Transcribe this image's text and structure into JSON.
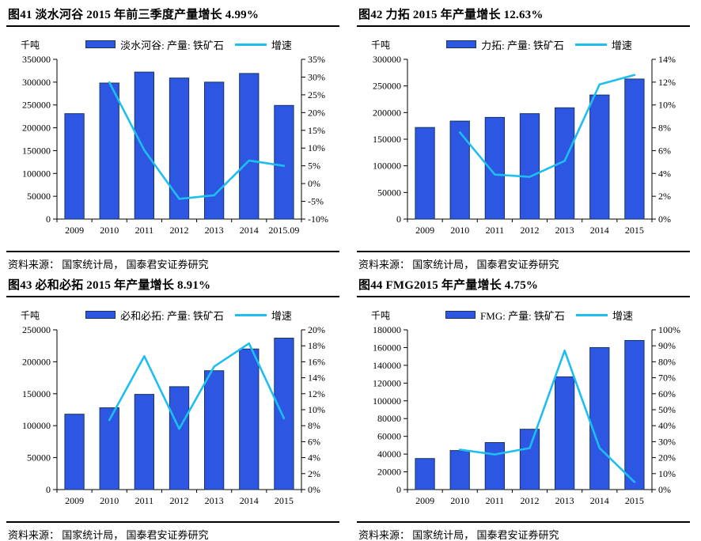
{
  "page": {
    "background": "#ffffff"
  },
  "style": {
    "bar_fill": "#2D57E3",
    "bar_border": "#16365C",
    "line_color": "#1FBEF0",
    "axis_color": "#000000",
    "text_color": "#000000"
  },
  "chart_data": [
    {
      "type": "combo_bar_line",
      "title": "图41  淡水河谷 2015 年前三季度产量增长 4.99%",
      "unit_label": "千吨",
      "categories": [
        "2009",
        "2010",
        "2011",
        "2012",
        "2013",
        "2014",
        "2015.09"
      ],
      "series": [
        {
          "name": "淡水河谷: 产量: 铁矿石",
          "type": "bar",
          "axis": "left",
          "values": [
            231000,
            298000,
            322000,
            309000,
            300000,
            319000,
            249000
          ]
        },
        {
          "name": "增速",
          "type": "line",
          "axis": "right",
          "values": [
            null,
            28.5,
            9.4,
            -4.3,
            -3.3,
            6.5,
            4.99
          ]
        }
      ],
      "left_axis": {
        "min": 0,
        "max": 350000,
        "step": 50000
      },
      "right_axis": {
        "min": -10,
        "max": 35,
        "step": 5,
        "suffix": "%"
      },
      "grid": false,
      "legend_position": "top",
      "source": "资料来源： 国家统计局， 国泰君安证券研究"
    },
    {
      "type": "combo_bar_line",
      "title": "图42  力拓 2015 年产量增长 12.63%",
      "unit_label": "千吨",
      "categories": [
        "2009",
        "2010",
        "2011",
        "2012",
        "2013",
        "2014",
        "2015"
      ],
      "series": [
        {
          "name": "力拓: 产量: 铁矿石",
          "type": "bar",
          "axis": "left",
          "values": [
            172000,
            184000,
            191000,
            198000,
            209000,
            233000,
            263000
          ]
        },
        {
          "name": "增速",
          "type": "line",
          "axis": "right",
          "values": [
            null,
            7.6,
            3.9,
            3.7,
            5.1,
            11.8,
            12.63
          ]
        }
      ],
      "left_axis": {
        "min": 0,
        "max": 300000,
        "step": 50000
      },
      "right_axis": {
        "min": 0,
        "max": 14,
        "step": 2,
        "suffix": "%"
      },
      "grid": false,
      "legend_position": "top",
      "source": "资料来源： 国家统计局， 国泰君安证券研究"
    },
    {
      "type": "combo_bar_line",
      "title": "图43  必和必拓 2015 年产量增长 8.91%",
      "unit_label": "千吨",
      "categories": [
        "2009",
        "2010",
        "2011",
        "2012",
        "2013",
        "2014",
        "2015"
      ],
      "series": [
        {
          "name": "必和必拓: 产量: 铁矿石",
          "type": "bar",
          "axis": "left",
          "values": [
            118000,
            128000,
            149000,
            161000,
            186000,
            220000,
            237000
          ]
        },
        {
          "name": "增速",
          "type": "line",
          "axis": "right",
          "values": [
            null,
            8.7,
            16.7,
            7.6,
            15.4,
            18.3,
            8.91
          ]
        }
      ],
      "left_axis": {
        "min": 0,
        "max": 250000,
        "step": 50000
      },
      "right_axis": {
        "min": 0,
        "max": 20,
        "step": 2,
        "suffix": "%"
      },
      "grid": false,
      "legend_position": "top",
      "source": "资料来源： 国家统计局， 国泰君安证券研究"
    },
    {
      "type": "combo_bar_line",
      "title": "图44  FMG2015 年产量增长 4.75%",
      "unit_label": "千吨",
      "categories": [
        "2009",
        "2010",
        "2011",
        "2012",
        "2013",
        "2014",
        "2015"
      ],
      "series": [
        {
          "name": "FMG: 产量: 铁矿石",
          "type": "bar",
          "axis": "left",
          "values": [
            35000,
            44000,
            53000,
            68000,
            127000,
            160000,
            168000
          ]
        },
        {
          "name": "增速",
          "type": "line",
          "axis": "right",
          "values": [
            null,
            25,
            22,
            26,
            87,
            26,
            4.75
          ]
        }
      ],
      "left_axis": {
        "min": 0,
        "max": 180000,
        "step": 20000
      },
      "right_axis": {
        "min": 0,
        "max": 100,
        "step": 10,
        "suffix": "%"
      },
      "grid": false,
      "legend_position": "top",
      "source": "资料来源： 国家统计局， 国泰君安证券研究"
    }
  ]
}
